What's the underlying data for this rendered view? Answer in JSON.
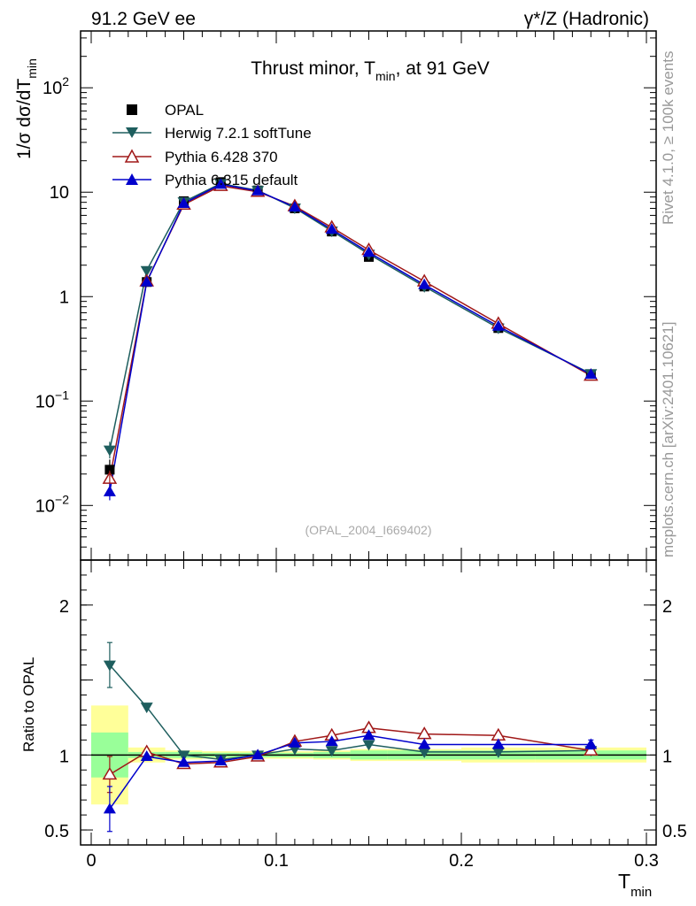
{
  "header": {
    "left": "91.2 GeV ee",
    "right": "γ*/Z (Hadronic)"
  },
  "side_labels": {
    "rivet": "Rivet 4.1.0, ≥ 100k events",
    "mcplots": "mcplots.cern.ch [arXiv:2401.10621]"
  },
  "chart_data": {
    "type": "line",
    "title_main": "Thrust minor, T",
    "title_sub": "min",
    "title_tail": ", at 91 GeV",
    "ylabel_main": "1/σ  dσ/dT",
    "ylabel_sub": "min",
    "xlabel_main": "T",
    "xlabel_sub": "min",
    "ratio_ylabel": "Ratio to OPAL",
    "watermark": "(OPAL_2004_I669402)",
    "xlim": [
      0,
      0.3
    ],
    "ylim_log": [
      0.003,
      350
    ],
    "ratio_ylim": [
      0.4,
      2.3
    ],
    "x_ticks": [
      "0",
      "0.1",
      "0.2",
      "0.3"
    ],
    "y_ticks": [
      {
        "base": "10",
        "exp": "−2"
      },
      {
        "base": "10",
        "exp": "−1"
      },
      {
        "base": "1",
        "exp": ""
      },
      {
        "base": "10",
        "exp": ""
      },
      {
        "base": "10",
        "exp": "2"
      }
    ],
    "ratio_ticks": [
      "0.5",
      "1",
      "2"
    ],
    "bins": [
      [
        0,
        0.02
      ],
      [
        0.02,
        0.04
      ],
      [
        0.04,
        0.06
      ],
      [
        0.06,
        0.08
      ],
      [
        0.08,
        0.1
      ],
      [
        0.1,
        0.12
      ],
      [
        0.12,
        0.14
      ],
      [
        0.14,
        0.16
      ],
      [
        0.16,
        0.2
      ],
      [
        0.2,
        0.24
      ],
      [
        0.24,
        0.3
      ]
    ],
    "x": [
      0.01,
      0.03,
      0.05,
      0.07,
      0.09,
      0.11,
      0.13,
      0.15,
      0.18,
      0.22,
      0.27
    ],
    "data": {
      "name": "OPAL",
      "color": "#000000",
      "values": [
        0.022,
        1.38,
        8.2,
        12.5,
        10.4,
        7.0,
        4.2,
        2.4,
        1.25,
        0.5,
        0.18
      ],
      "band_stat": [
        0.15,
        0.02,
        0.02,
        0.015,
        0.015,
        0.015,
        0.02,
        0.03,
        0.03,
        0.03,
        0.03
      ],
      "band_total": [
        0.33,
        0.05,
        0.03,
        0.025,
        0.025,
        0.025,
        0.03,
        0.04,
        0.04,
        0.05,
        0.05
      ]
    },
    "series": [
      {
        "name": "Herwig 7.2.1 softTune",
        "color": "#1e5e5e",
        "marker": "triangle-down",
        "values": [
          0.034,
          1.78,
          8.1,
          12.1,
          10.4,
          7.05,
          4.25,
          2.55,
          1.25,
          0.5,
          0.183
        ],
        "ratio": [
          1.6,
          1.32,
          1.0,
          0.97,
          1.0,
          1.04,
          1.03,
          1.07,
          1.02,
          1.02,
          1.03
        ],
        "ratio_err": [
          0.15,
          0.0,
          0.0,
          0.0,
          0.0,
          0.0,
          0.0,
          0.0,
          0.0,
          0.0,
          0.0
        ]
      },
      {
        "name": "Pythia 6.428 370",
        "color": "#a01818",
        "marker": "triangle-up-open",
        "values": [
          0.018,
          1.4,
          7.6,
          11.5,
          10.1,
          7.35,
          4.6,
          2.8,
          1.4,
          0.55,
          0.175
        ],
        "ratio": [
          0.87,
          1.02,
          0.94,
          0.95,
          0.99,
          1.09,
          1.13,
          1.18,
          1.14,
          1.13,
          1.03
        ],
        "ratio_err": [
          0.12,
          0.0,
          0.0,
          0.0,
          0.0,
          0.0,
          0.0,
          0.0,
          0.0,
          0.0,
          0.0
        ]
      },
      {
        "name": "Pythia 6.315 default",
        "color": "#0000cc",
        "marker": "triangle-up",
        "values": [
          0.0135,
          1.38,
          7.8,
          11.9,
          10.3,
          7.2,
          4.4,
          2.65,
          1.3,
          0.52,
          0.18
        ],
        "ratio": [
          0.64,
          0.99,
          0.95,
          0.96,
          1.0,
          1.08,
          1.09,
          1.13,
          1.07,
          1.07,
          1.07
        ],
        "ratio_err": [
          0.15,
          0.0,
          0.0,
          0.0,
          0.0,
          0.0,
          0.0,
          0.0,
          0.0,
          0.0,
          0.03
        ]
      }
    ]
  }
}
